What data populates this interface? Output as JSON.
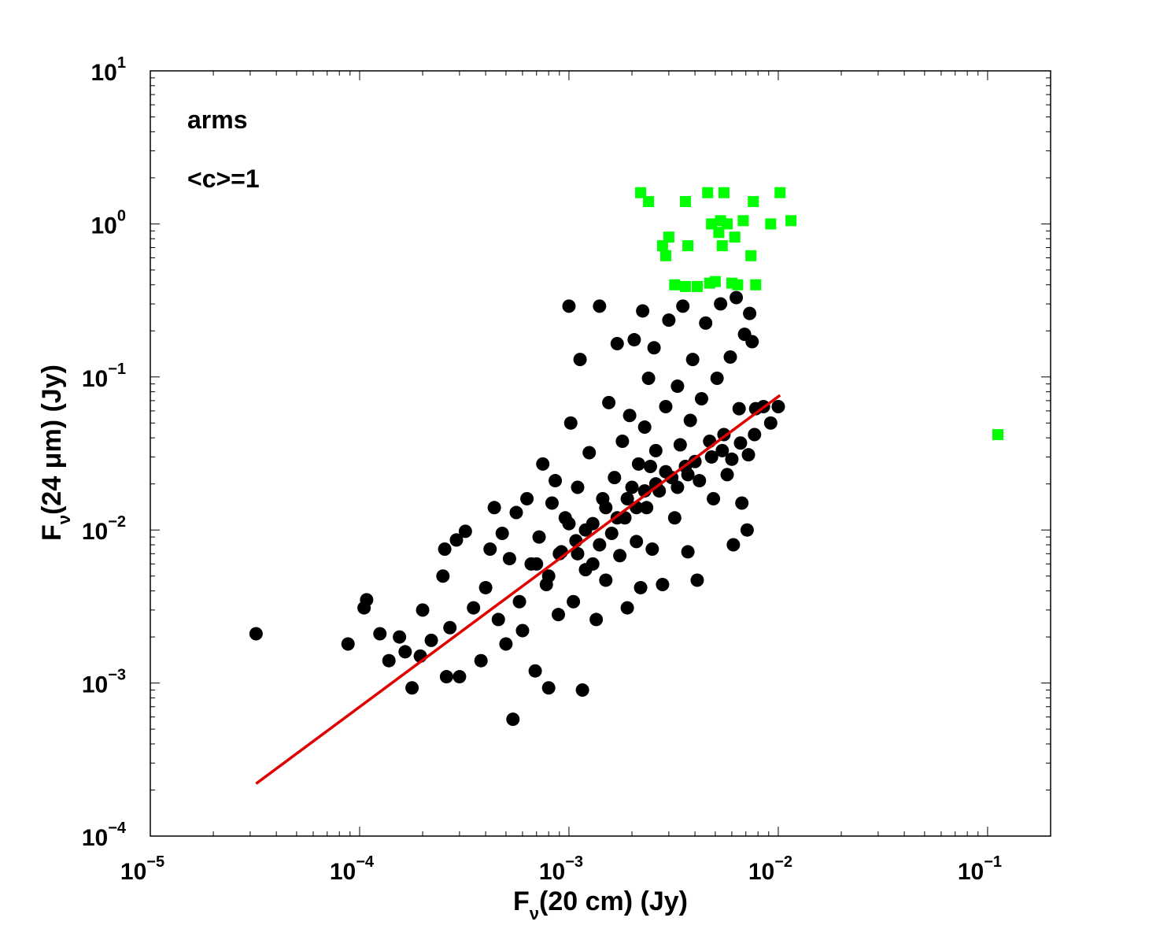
{
  "chart_data": {
    "type": "scatter",
    "xscale": "log",
    "yscale": "log",
    "xlim": [
      1e-05,
      0.2
    ],
    "ylim": [
      0.0001,
      10
    ],
    "grid": false,
    "xlabel": {
      "pre": "F",
      "sub": "ν",
      "post": "(20 cm) (Jy)"
    },
    "ylabel": {
      "pre": "F",
      "sub": "ν",
      "post": "(24 μm) (Jy)"
    },
    "xticks": [
      {
        "value": 1e-05,
        "base": "10",
        "exp": "−5"
      },
      {
        "value": 0.0001,
        "base": "10",
        "exp": "−4"
      },
      {
        "value": 0.001,
        "base": "10",
        "exp": "−3"
      },
      {
        "value": 0.01,
        "base": "10",
        "exp": "−2"
      },
      {
        "value": 0.1,
        "base": "10",
        "exp": "−1"
      }
    ],
    "yticks": [
      {
        "value": 0.0001,
        "base": "10",
        "exp": "−4"
      },
      {
        "value": 0.001,
        "base": "10",
        "exp": "−3"
      },
      {
        "value": 0.01,
        "base": "10",
        "exp": "−2"
      },
      {
        "value": 0.1,
        "base": "10",
        "exp": "−1"
      },
      {
        "value": 1,
        "base": "10",
        "exp": "0"
      },
      {
        "value": 10,
        "base": "10",
        "exp": "1"
      }
    ],
    "annotations": [
      "arms",
      "<c>=1"
    ],
    "series": [
      {
        "marker": "circle",
        "color": "#000000",
        "points_sample": [
          [
            3.2e-05,
            0.0021
          ],
          [
            8.8e-05,
            0.0018
          ],
          [
            0.000105,
            0.0031
          ],
          [
            0.000108,
            0.0035
          ],
          [
            0.000125,
            0.0021
          ],
          [
            0.000138,
            0.0014
          ],
          [
            0.000155,
            0.002
          ],
          [
            0.000165,
            0.0016
          ],
          [
            0.000178,
            0.00093
          ],
          [
            0.000195,
            0.0015
          ],
          [
            0.0002,
            0.003
          ],
          [
            0.00022,
            0.0019
          ],
          [
            0.00025,
            0.005
          ],
          [
            0.000255,
            0.0075
          ],
          [
            0.00026,
            0.0011
          ],
          [
            0.00027,
            0.0023
          ],
          [
            0.00029,
            0.0086
          ],
          [
            0.0003,
            0.0011
          ],
          [
            0.00032,
            0.0098
          ],
          [
            0.00035,
            0.0031
          ],
          [
            0.00038,
            0.0014
          ],
          [
            0.0004,
            0.0042
          ],
          [
            0.00042,
            0.0075
          ],
          [
            0.00044,
            0.014
          ],
          [
            0.00046,
            0.0026
          ],
          [
            0.00048,
            0.0095
          ],
          [
            0.0005,
            0.0018
          ],
          [
            0.00052,
            0.0065
          ],
          [
            0.00054,
            0.00058
          ],
          [
            0.00056,
            0.013
          ],
          [
            0.00058,
            0.0034
          ],
          [
            0.0006,
            0.0022
          ],
          [
            0.00063,
            0.016
          ],
          [
            0.00066,
            0.006
          ],
          [
            0.00069,
            0.0012
          ],
          [
            0.00072,
            0.009
          ],
          [
            0.00075,
            0.027
          ],
          [
            0.00078,
            0.0044
          ],
          [
            0.0008,
            0.00093
          ],
          [
            0.00083,
            0.015
          ],
          [
            0.00086,
            0.021
          ],
          [
            0.00089,
            0.0028
          ],
          [
            0.00092,
            0.0072
          ],
          [
            0.00096,
            0.012
          ],
          [
            0.001,
            0.29
          ],
          [
            0.00102,
            0.05
          ],
          [
            0.00105,
            0.0034
          ],
          [
            0.00108,
            0.0085
          ],
          [
            0.0011,
            0.019
          ],
          [
            0.00113,
            0.13
          ],
          [
            0.00116,
            0.0009
          ],
          [
            0.0012,
            0.0055
          ],
          [
            0.00125,
            0.032
          ],
          [
            0.0013,
            0.011
          ],
          [
            0.00135,
            0.0026
          ],
          [
            0.0014,
            0.29
          ],
          [
            0.00145,
            0.016
          ],
          [
            0.0015,
            0.0047
          ],
          [
            0.00155,
            0.068
          ],
          [
            0.0016,
            0.0095
          ],
          [
            0.00165,
            0.022
          ],
          [
            0.0017,
            0.165
          ],
          [
            0.00175,
            0.0068
          ],
          [
            0.0018,
            0.038
          ],
          [
            0.00185,
            0.012
          ],
          [
            0.0019,
            0.0031
          ],
          [
            0.00195,
            0.056
          ],
          [
            0.002,
            0.019
          ],
          [
            0.00205,
            0.175
          ],
          [
            0.0021,
            0.0084
          ],
          [
            0.00215,
            0.027
          ],
          [
            0.0022,
            0.0042
          ],
          [
            0.00225,
            0.27
          ],
          [
            0.0023,
            0.047
          ],
          [
            0.00235,
            0.014
          ],
          [
            0.0024,
            0.098
          ],
          [
            0.00245,
            0.026
          ],
          [
            0.0025,
            0.0075
          ],
          [
            0.00255,
            0.155
          ],
          [
            0.0026,
            0.033
          ],
          [
            0.0027,
            0.018
          ],
          [
            0.0028,
            0.0044
          ],
          [
            0.0029,
            0.064
          ],
          [
            0.003,
            0.235
          ],
          [
            0.0031,
            0.022
          ],
          [
            0.0032,
            0.012
          ],
          [
            0.0033,
            0.087
          ],
          [
            0.0034,
            0.036
          ],
          [
            0.0035,
            0.29
          ],
          [
            0.0036,
            0.026
          ],
          [
            0.0037,
            0.0072
          ],
          [
            0.0038,
            0.052
          ],
          [
            0.0039,
            0.13
          ],
          [
            0.004,
            0.028
          ],
          [
            0.0041,
            0.0047
          ],
          [
            0.0043,
            0.072
          ],
          [
            0.0045,
            0.225
          ],
          [
            0.0047,
            0.038
          ],
          [
            0.0049,
            0.016
          ],
          [
            0.0051,
            0.098
          ],
          [
            0.0053,
            0.3
          ],
          [
            0.0055,
            0.042
          ],
          [
            0.0057,
            0.023
          ],
          [
            0.0059,
            0.135
          ],
          [
            0.0061,
            0.008
          ],
          [
            0.0063,
            0.33
          ],
          [
            0.0065,
            0.062
          ],
          [
            0.0067,
            0.015
          ],
          [
            0.0069,
            0.19
          ],
          [
            0.0071,
            0.01
          ],
          [
            0.0073,
            0.26
          ],
          [
            0.0075,
            0.17
          ],
          [
            0.0078,
            0.062
          ],
          [
            0.0085,
            0.064
          ],
          [
            0.0092,
            0.05
          ],
          [
            0.01,
            0.064
          ],
          [
            0.0011,
            0.007
          ],
          [
            0.0012,
            0.01
          ],
          [
            0.0013,
            0.006
          ],
          [
            0.0014,
            0.008
          ],
          [
            0.001,
            0.011
          ],
          [
            0.0009,
            0.007
          ],
          [
            0.0008,
            0.005
          ],
          [
            0.0007,
            0.006
          ],
          [
            0.0015,
            0.014
          ],
          [
            0.0017,
            0.012
          ],
          [
            0.0019,
            0.016
          ],
          [
            0.0021,
            0.014
          ],
          [
            0.0023,
            0.018
          ],
          [
            0.0026,
            0.02
          ],
          [
            0.0029,
            0.024
          ],
          [
            0.0033,
            0.019
          ],
          [
            0.0037,
            0.023
          ],
          [
            0.0042,
            0.021
          ],
          [
            0.0048,
            0.03
          ],
          [
            0.0054,
            0.033
          ],
          [
            0.006,
            0.029
          ],
          [
            0.0066,
            0.037
          ],
          [
            0.0072,
            0.031
          ],
          [
            0.0077,
            0.042
          ]
        ]
      },
      {
        "marker": "square",
        "color": "#00ff00",
        "points_sample": [
          [
            0.0022,
            1.6
          ],
          [
            0.0024,
            1.4
          ],
          [
            0.0028,
            0.72
          ],
          [
            0.0029,
            0.62
          ],
          [
            0.003,
            0.82
          ],
          [
            0.0032,
            0.4
          ],
          [
            0.0036,
            1.4
          ],
          [
            0.0037,
            0.72
          ],
          [
            0.0036,
            0.39
          ],
          [
            0.0041,
            0.39
          ],
          [
            0.0046,
            1.6
          ],
          [
            0.0048,
            1.0
          ],
          [
            0.0047,
            0.41
          ],
          [
            0.005,
            0.42
          ],
          [
            0.0052,
            0.88
          ],
          [
            0.0053,
            1.05
          ],
          [
            0.0054,
            0.72
          ],
          [
            0.0055,
            1.6
          ],
          [
            0.0057,
            1.0
          ],
          [
            0.006,
            0.41
          ],
          [
            0.0062,
            0.82
          ],
          [
            0.0064,
            0.4
          ],
          [
            0.0068,
            1.05
          ],
          [
            0.0074,
            0.62
          ],
          [
            0.0076,
            1.4
          ],
          [
            0.0078,
            0.4
          ],
          [
            0.0092,
            1.0
          ],
          [
            0.0102,
            1.6
          ],
          [
            0.0115,
            1.05
          ],
          [
            0.112,
            0.042
          ]
        ]
      }
    ],
    "fit_line": {
      "color": "#e00000",
      "x": [
        3.2e-05,
        0.0102
      ],
      "y": [
        0.00022,
        0.076
      ]
    }
  }
}
